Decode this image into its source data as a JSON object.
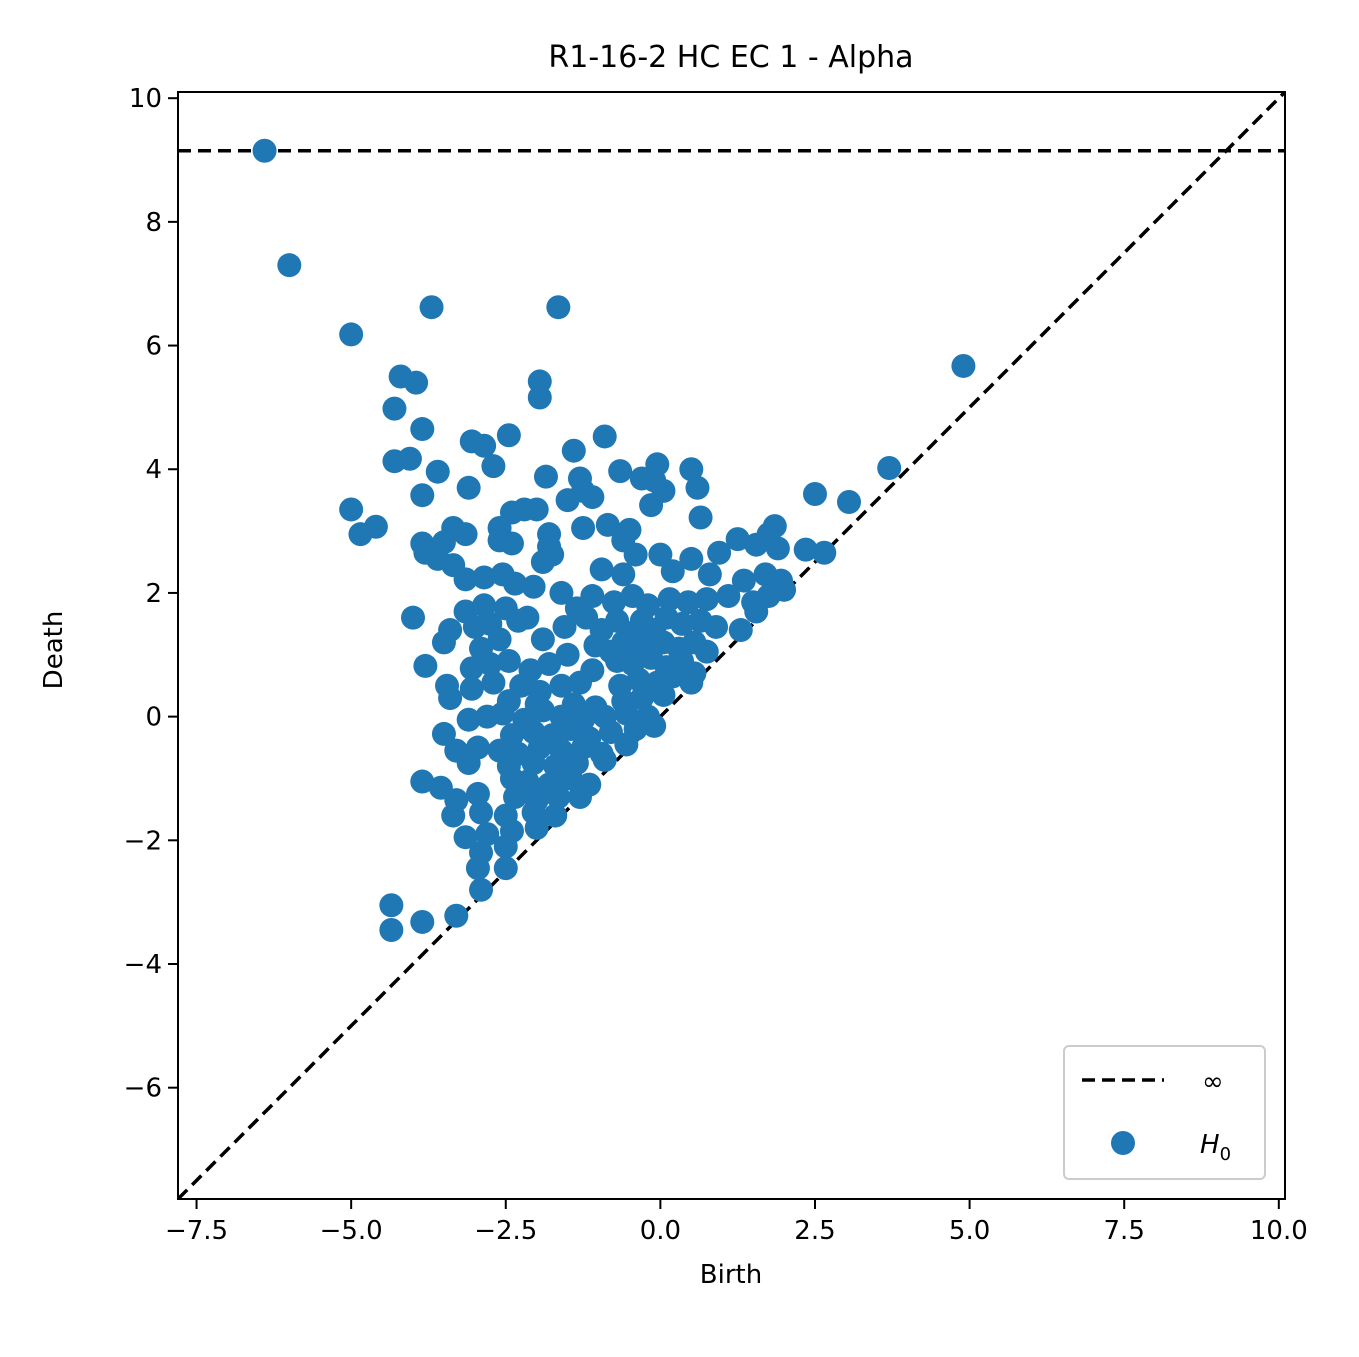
{
  "chart_data": {
    "type": "scatter",
    "title": "R1-16-2 HC EC 1 - Alpha",
    "xlabel": "Birth",
    "ylabel": "Death",
    "xlim": [
      -7.8,
      10.1
    ],
    "ylim": [
      -7.8,
      10.1
    ],
    "xticks": [
      -7.5,
      -5.0,
      -2.5,
      0.0,
      2.5,
      5.0,
      7.5,
      10.0
    ],
    "xtick_labels": [
      "−7.5",
      "−5.0",
      "−2.5",
      "0.0",
      "2.5",
      "5.0",
      "7.5",
      "10.0"
    ],
    "yticks": [
      -6,
      -4,
      -2,
      0,
      2,
      4,
      6,
      8,
      10
    ],
    "ytick_labels": [
      "−6",
      "−4",
      "−2",
      "0",
      "2",
      "4",
      "6",
      "8",
      "10"
    ],
    "infinity_death": 9.15,
    "grid": false,
    "legend_position": "lower right",
    "legend": [
      {
        "label": "∞",
        "kind": "dashed-line",
        "color": "#000000"
      },
      {
        "label": "H",
        "subscript": "0",
        "kind": "marker",
        "color": "#1f77b4"
      }
    ],
    "series": [
      {
        "name": "H0",
        "color": "#1f77b4",
        "points": [
          [
            -6.4,
            9.15
          ],
          [
            -6.0,
            7.3
          ],
          [
            -5.0,
            6.18
          ],
          [
            -3.7,
            6.62
          ],
          [
            -1.65,
            6.62
          ],
          [
            4.9,
            5.67
          ],
          [
            -4.2,
            5.5
          ],
          [
            -3.95,
            5.4
          ],
          [
            -1.95,
            5.42
          ],
          [
            -1.95,
            5.16
          ],
          [
            -4.3,
            4.98
          ],
          [
            -3.85,
            4.65
          ],
          [
            -3.05,
            4.45
          ],
          [
            -2.85,
            4.38
          ],
          [
            -2.45,
            4.55
          ],
          [
            -0.9,
            4.53
          ],
          [
            -1.4,
            4.3
          ],
          [
            -4.3,
            4.13
          ],
          [
            -4.05,
            4.17
          ],
          [
            -3.6,
            3.96
          ],
          [
            -2.7,
            4.05
          ],
          [
            -0.05,
            4.08
          ],
          [
            0.5,
            4.0
          ],
          [
            3.7,
            4.02
          ],
          [
            -1.3,
            3.85
          ],
          [
            -0.65,
            3.97
          ],
          [
            -0.3,
            3.85
          ],
          [
            -1.85,
            3.88
          ],
          [
            -1.25,
            3.65
          ],
          [
            -0.1,
            3.82
          ],
          [
            0.05,
            3.65
          ],
          [
            0.6,
            3.7
          ],
          [
            2.5,
            3.6
          ],
          [
            3.05,
            3.47
          ],
          [
            -3.85,
            3.58
          ],
          [
            -3.1,
            3.7
          ],
          [
            -1.5,
            3.5
          ],
          [
            -1.1,
            3.55
          ],
          [
            -0.15,
            3.42
          ],
          [
            -5.0,
            3.35
          ],
          [
            -4.6,
            3.07
          ],
          [
            -4.85,
            2.95
          ],
          [
            -2.4,
            3.3
          ],
          [
            -2.2,
            3.35
          ],
          [
            -2.0,
            3.35
          ],
          [
            -2.6,
            3.05
          ],
          [
            -1.8,
            2.95
          ],
          [
            -1.25,
            3.05
          ],
          [
            -0.85,
            3.1
          ],
          [
            -0.5,
            3.02
          ],
          [
            0.65,
            3.22
          ],
          [
            -3.35,
            3.05
          ],
          [
            -3.15,
            2.95
          ],
          [
            -3.5,
            2.82
          ],
          [
            -3.85,
            2.8
          ],
          [
            -2.6,
            2.85
          ],
          [
            -2.4,
            2.8
          ],
          [
            -1.8,
            2.75
          ],
          [
            -0.6,
            2.85
          ],
          [
            1.25,
            2.87
          ],
          [
            1.85,
            3.08
          ],
          [
            1.75,
            2.95
          ],
          [
            -3.8,
            2.65
          ],
          [
            -3.6,
            2.55
          ],
          [
            -3.35,
            2.45
          ],
          [
            -1.9,
            2.5
          ],
          [
            -1.75,
            2.62
          ],
          [
            -0.4,
            2.62
          ],
          [
            0.0,
            2.62
          ],
          [
            0.5,
            2.55
          ],
          [
            0.95,
            2.65
          ],
          [
            1.55,
            2.78
          ],
          [
            1.9,
            2.72
          ],
          [
            2.35,
            2.7
          ],
          [
            2.65,
            2.65
          ],
          [
            -3.15,
            2.22
          ],
          [
            -2.85,
            2.25
          ],
          [
            -2.55,
            2.3
          ],
          [
            -2.35,
            2.15
          ],
          [
            -2.05,
            2.1
          ],
          [
            -1.6,
            2.0
          ],
          [
            -0.95,
            2.38
          ],
          [
            -0.6,
            2.3
          ],
          [
            0.2,
            2.35
          ],
          [
            0.8,
            2.3
          ],
          [
            1.35,
            2.2
          ],
          [
            1.7,
            2.3
          ],
          [
            1.95,
            2.2
          ],
          [
            2.0,
            2.05
          ],
          [
            -4.0,
            1.6
          ],
          [
            -3.15,
            1.7
          ],
          [
            -2.85,
            1.8
          ],
          [
            -2.5,
            1.75
          ],
          [
            -2.15,
            1.6
          ],
          [
            -1.35,
            1.75
          ],
          [
            -1.1,
            1.95
          ],
          [
            -0.75,
            1.85
          ],
          [
            -0.45,
            1.95
          ],
          [
            -0.2,
            1.8
          ],
          [
            0.15,
            1.9
          ],
          [
            0.45,
            1.85
          ],
          [
            0.75,
            1.9
          ],
          [
            1.1,
            1.95
          ],
          [
            1.5,
            1.85
          ],
          [
            1.75,
            1.95
          ],
          [
            -3.4,
            1.4
          ],
          [
            -3.0,
            1.45
          ],
          [
            -2.75,
            1.5
          ],
          [
            -2.3,
            1.55
          ],
          [
            -1.9,
            1.25
          ],
          [
            -1.55,
            1.45
          ],
          [
            -1.2,
            1.6
          ],
          [
            -0.95,
            1.4
          ],
          [
            -0.7,
            1.55
          ],
          [
            -0.5,
            1.35
          ],
          [
            -0.3,
            1.55
          ],
          [
            -0.1,
            1.4
          ],
          [
            0.1,
            1.6
          ],
          [
            0.35,
            1.5
          ],
          [
            0.65,
            1.55
          ],
          [
            0.9,
            1.45
          ],
          [
            1.3,
            1.4
          ],
          [
            1.55,
            1.7
          ],
          [
            -3.5,
            1.2
          ],
          [
            -2.9,
            1.1
          ],
          [
            -2.6,
            1.25
          ],
          [
            -1.5,
            1.0
          ],
          [
            -1.05,
            1.15
          ],
          [
            -0.8,
            1.05
          ],
          [
            -0.6,
            1.2
          ],
          [
            -0.4,
            1.15
          ],
          [
            -0.2,
            1.25
          ],
          [
            0.05,
            1.2
          ],
          [
            0.3,
            1.1
          ],
          [
            0.55,
            1.2
          ],
          [
            0.75,
            1.05
          ],
          [
            -3.8,
            0.82
          ],
          [
            -3.05,
            0.78
          ],
          [
            -2.75,
            0.85
          ],
          [
            -2.45,
            0.9
          ],
          [
            -2.1,
            0.75
          ],
          [
            -1.8,
            0.85
          ],
          [
            -1.1,
            0.75
          ],
          [
            -0.7,
            0.9
          ],
          [
            -0.45,
            0.85
          ],
          [
            -0.15,
            0.95
          ],
          [
            0.1,
            0.8
          ],
          [
            0.35,
            0.9
          ],
          [
            0.55,
            0.7
          ],
          [
            -3.45,
            0.5
          ],
          [
            -3.05,
            0.45
          ],
          [
            -2.7,
            0.55
          ],
          [
            -2.25,
            0.5
          ],
          [
            -1.95,
            0.4
          ],
          [
            -1.6,
            0.5
          ],
          [
            -1.3,
            0.55
          ],
          [
            -0.65,
            0.5
          ],
          [
            -0.35,
            0.6
          ],
          [
            -0.05,
            0.55
          ],
          [
            0.2,
            0.65
          ],
          [
            0.5,
            0.55
          ],
          [
            -3.4,
            0.3
          ],
          [
            -2.45,
            0.25
          ],
          [
            -2.0,
            0.2
          ],
          [
            -1.4,
            0.2
          ],
          [
            -1.05,
            0.15
          ],
          [
            -0.6,
            0.25
          ],
          [
            -0.3,
            0.3
          ],
          [
            0.05,
            0.35
          ],
          [
            -3.1,
            -0.05
          ],
          [
            -2.8,
            0.0
          ],
          [
            -2.55,
            0.05
          ],
          [
            -2.2,
            -0.05
          ],
          [
            -1.9,
            0.1
          ],
          [
            -1.6,
            0.0
          ],
          [
            -1.25,
            -0.05
          ],
          [
            -0.9,
            0.0
          ],
          [
            -0.55,
            0.05
          ],
          [
            -0.2,
            0.0
          ],
          [
            -3.5,
            -0.28
          ],
          [
            -2.4,
            -0.3
          ],
          [
            -2.05,
            -0.25
          ],
          [
            -1.75,
            -0.3
          ],
          [
            -1.45,
            -0.2
          ],
          [
            -1.15,
            -0.35
          ],
          [
            -0.8,
            -0.25
          ],
          [
            -0.4,
            -0.2
          ],
          [
            -0.1,
            -0.15
          ],
          [
            -3.3,
            -0.55
          ],
          [
            -2.95,
            -0.5
          ],
          [
            -2.6,
            -0.55
          ],
          [
            -2.3,
            -0.6
          ],
          [
            -1.95,
            -0.5
          ],
          [
            -1.6,
            -0.55
          ],
          [
            -1.25,
            -0.5
          ],
          [
            -0.95,
            -0.6
          ],
          [
            -0.55,
            -0.45
          ],
          [
            -3.1,
            -0.75
          ],
          [
            -2.45,
            -0.8
          ],
          [
            -2.05,
            -0.75
          ],
          [
            -1.7,
            -0.8
          ],
          [
            -1.35,
            -0.75
          ],
          [
            -0.9,
            -0.7
          ],
          [
            -3.85,
            -1.05
          ],
          [
            -3.55,
            -1.15
          ],
          [
            -2.4,
            -1.0
          ],
          [
            -2.15,
            -1.05
          ],
          [
            -1.8,
            -1.1
          ],
          [
            -1.45,
            -1.0
          ],
          [
            -1.15,
            -1.1
          ],
          [
            -3.3,
            -1.35
          ],
          [
            -2.95,
            -1.25
          ],
          [
            -2.35,
            -1.3
          ],
          [
            -2.0,
            -1.35
          ],
          [
            -1.65,
            -1.3
          ],
          [
            -1.3,
            -1.3
          ],
          [
            -3.35,
            -1.6
          ],
          [
            -2.9,
            -1.55
          ],
          [
            -2.5,
            -1.6
          ],
          [
            -2.05,
            -1.55
          ],
          [
            -1.7,
            -1.6
          ],
          [
            -3.15,
            -1.95
          ],
          [
            -2.8,
            -1.9
          ],
          [
            -2.4,
            -1.85
          ],
          [
            -2.0,
            -1.8
          ],
          [
            -2.9,
            -2.2
          ],
          [
            -2.5,
            -2.1
          ],
          [
            -2.5,
            -2.45
          ],
          [
            -2.95,
            -2.45
          ],
          [
            -2.9,
            -2.8
          ],
          [
            -4.35,
            -3.05
          ],
          [
            -3.85,
            -3.32
          ],
          [
            -3.3,
            -3.22
          ],
          [
            -4.35,
            -3.45
          ]
        ]
      }
    ]
  }
}
